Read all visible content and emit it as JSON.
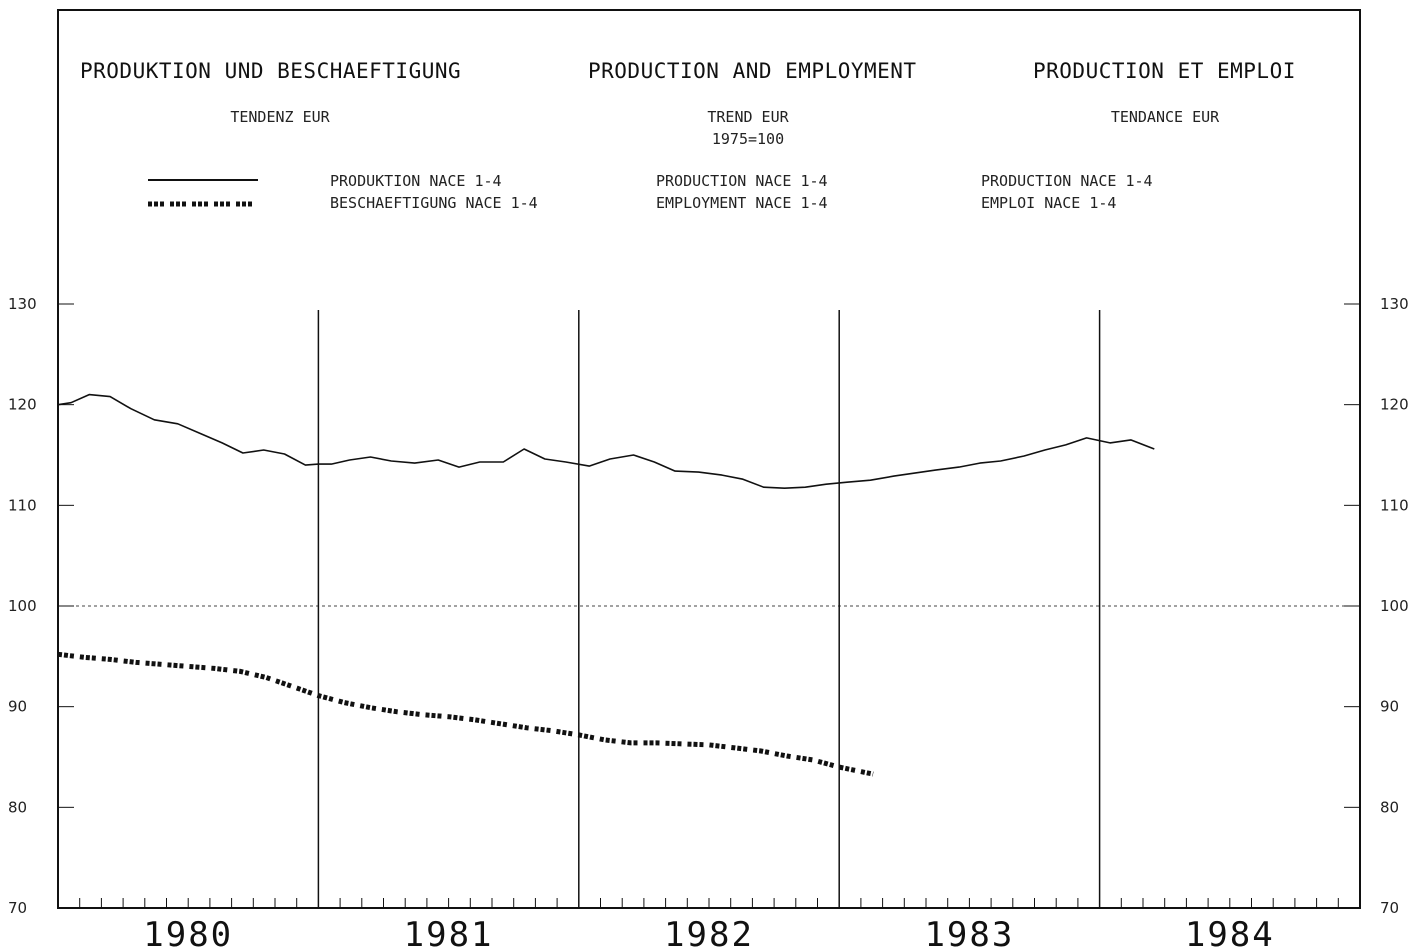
{
  "header": {
    "title_de": "PRODUKTION UND BESCHAEFTIGUNG",
    "title_en": "PRODUCTION AND EMPLOYMENT",
    "title_fr": "PRODUCTION ET EMPLOI",
    "sub_de": "TENDENZ EUR",
    "sub_en": "TREND EUR",
    "sub_en_base": "1975=100",
    "sub_fr": "TENDANCE EUR"
  },
  "legend": {
    "production_de": "PRODUKTION NACE 1-4",
    "employment_de": "BESCHAEFTIGUNG NACE 1-4",
    "production_en": "PRODUCTION NACE 1-4",
    "employment_en": "EMPLOYMENT NACE 1-4",
    "production_fr": "PRODUCTION NACE 1-4",
    "employment_fr": "EMPLOI NACE 1-4"
  },
  "chart_data": {
    "type": "line",
    "ylim": [
      70,
      130
    ],
    "yticks": [
      "70",
      "80",
      "90",
      "100",
      "110",
      "120",
      "130"
    ],
    "ytick_values": [
      70,
      80,
      90,
      100,
      110,
      120,
      130
    ],
    "reference_line": 100,
    "xlim": [
      1980.0,
      1985.0
    ],
    "xtick_labels": [
      "1980",
      "1981",
      "1982",
      "1983",
      "1984"
    ],
    "xtick_positions": [
      1980.5,
      1981.5,
      1982.5,
      1983.5,
      1984.5
    ],
    "year_dividers": [
      1981,
      1982,
      1983,
      1984
    ],
    "grid": false,
    "legend_position": "top",
    "series": [
      {
        "name": "PRODUKTION NACE 1-4",
        "style": "solid",
        "color": "#111111",
        "x": [
          1980.0,
          1980.05,
          1980.12,
          1980.2,
          1980.28,
          1980.37,
          1980.46,
          1980.55,
          1980.63,
          1980.71,
          1980.79,
          1980.87,
          1980.95,
          1981.0,
          1981.05,
          1981.12,
          1981.2,
          1981.28,
          1981.37,
          1981.46,
          1981.54,
          1981.62,
          1981.71,
          1981.79,
          1981.87,
          1981.95,
          1982.04,
          1982.12,
          1982.21,
          1982.29,
          1982.37,
          1982.46,
          1982.55,
          1982.63,
          1982.71,
          1982.79,
          1982.87,
          1982.95,
          1983.03,
          1983.12,
          1983.21,
          1983.29,
          1983.37,
          1983.46,
          1983.54,
          1983.62,
          1983.71,
          1983.79,
          1983.87,
          1983.95,
          1984.04,
          1984.12,
          1984.21
        ],
        "y": [
          120.0,
          120.2,
          121.0,
          120.8,
          119.6,
          118.5,
          118.1,
          117.1,
          116.2,
          115.2,
          115.5,
          115.1,
          114.0,
          114.1,
          114.1,
          114.5,
          114.8,
          114.4,
          114.2,
          114.5,
          113.8,
          114.3,
          114.3,
          115.6,
          114.6,
          114.3,
          113.9,
          114.6,
          115.0,
          114.3,
          113.4,
          113.3,
          113.0,
          112.6,
          111.8,
          111.7,
          111.8,
          112.1,
          112.3,
          112.5,
          112.9,
          113.2,
          113.5,
          113.8,
          114.2,
          114.4,
          114.9,
          115.5,
          116.0,
          116.7,
          116.2,
          116.5,
          115.6
        ]
      },
      {
        "name": "BESCHAEFTIGUNG NACE 1-4",
        "style": "dashed",
        "color": "#111111",
        "x": [
          1980.0,
          1980.1,
          1980.2,
          1980.3,
          1980.4,
          1980.5,
          1980.6,
          1980.7,
          1980.8,
          1980.9,
          1981.0,
          1981.1,
          1981.2,
          1981.3,
          1981.4,
          1981.5,
          1981.6,
          1981.7,
          1981.8,
          1981.9,
          1982.0,
          1982.1,
          1982.2,
          1982.3,
          1982.4,
          1982.5,
          1982.6,
          1982.7,
          1982.8,
          1982.9,
          1983.0,
          1983.13
        ],
        "y": [
          95.2,
          94.9,
          94.7,
          94.4,
          94.2,
          94.0,
          93.8,
          93.5,
          92.9,
          92.0,
          91.1,
          90.4,
          89.9,
          89.5,
          89.2,
          89.0,
          88.7,
          88.3,
          87.9,
          87.6,
          87.2,
          86.7,
          86.4,
          86.4,
          86.3,
          86.2,
          85.9,
          85.6,
          85.1,
          84.7,
          84.0,
          83.3
        ]
      }
    ]
  }
}
